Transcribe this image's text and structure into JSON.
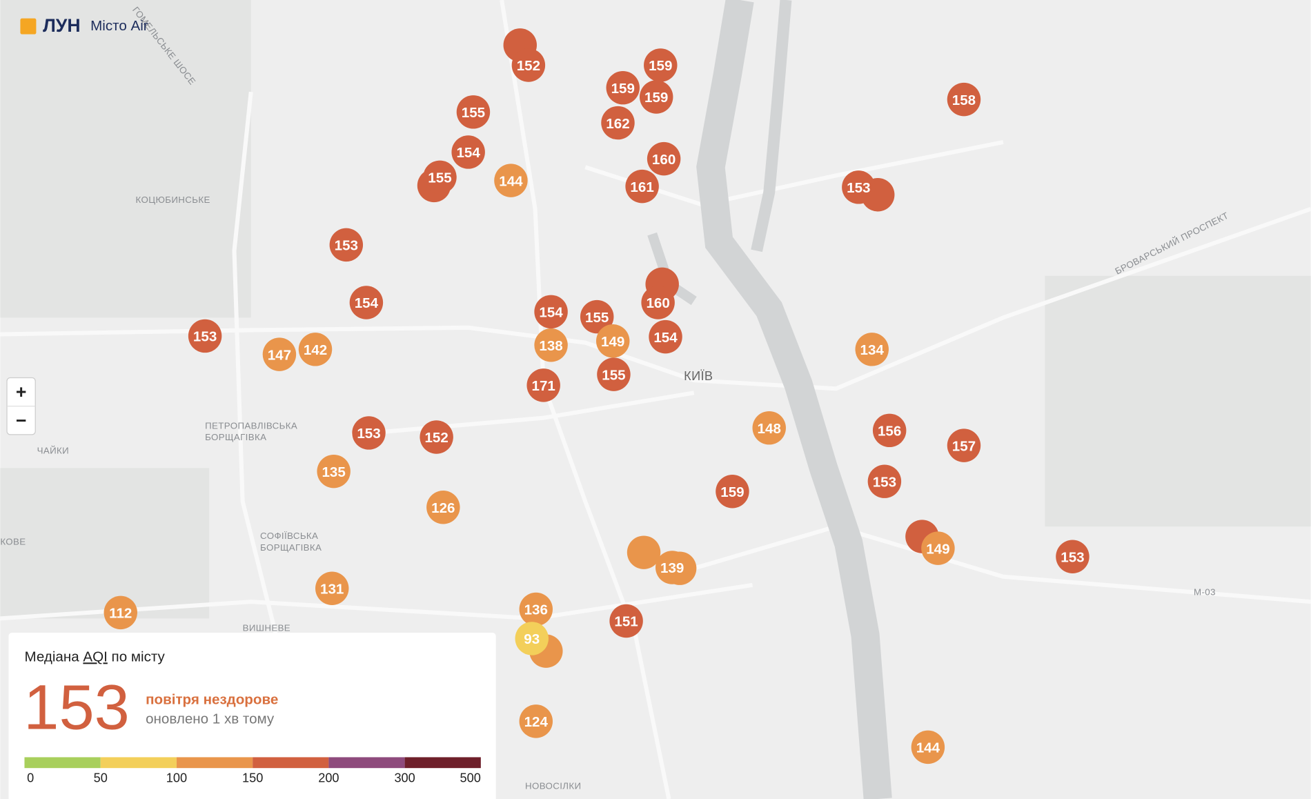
{
  "header": {
    "logo": "ЛУН",
    "product": "Місто Air"
  },
  "zoom": {
    "in": "+",
    "out": "−"
  },
  "map_labels": [
    "КОЦЮБИНСЬКЕ",
    "ПЕТРОПАВЛІВСЬКА",
    "БОРЩАГІВКА",
    "ЧАЙКИ",
    "СОФІЇВСЬКА",
    "БОРЩАГІВКА",
    "ВИШНЕВЕ",
    "КИЇВ",
    "НОВОСІЛКИ",
    "М-03",
    "КОВЕ",
    "БРОВАРСЬКИЙ ПРОСПЕКТ",
    "ГОМЕЛЬСЬКЕ ШОСЕ"
  ],
  "markers": [
    152,
    159,
    159,
    159,
    155,
    162,
    158,
    154,
    160,
    155,
    144,
    161,
    153,
    153,
    154,
    160,
    154,
    155,
    153,
    142,
    147,
    138,
    149,
    154,
    134,
    155,
    171,
    148,
    156,
    153,
    157,
    152,
    135,
    159,
    153,
    126,
    139,
    149,
    153,
    131,
    112,
    136,
    151,
    93,
    124,
    144
  ],
  "legend": {
    "title_prefix": "Медіана",
    "title_link": "AQI",
    "title_suffix": "по місту",
    "median": 153,
    "status": "повітря нездорове",
    "updated": "оновлено 1 хв тому",
    "scale": [
      0,
      50,
      100,
      150,
      200,
      300,
      500
    ],
    "colors": [
      "#a8cf5c",
      "#f3cf5a",
      "#e9954b",
      "#d1603f",
      "#8e4a7c",
      "#6e1f2a"
    ]
  }
}
